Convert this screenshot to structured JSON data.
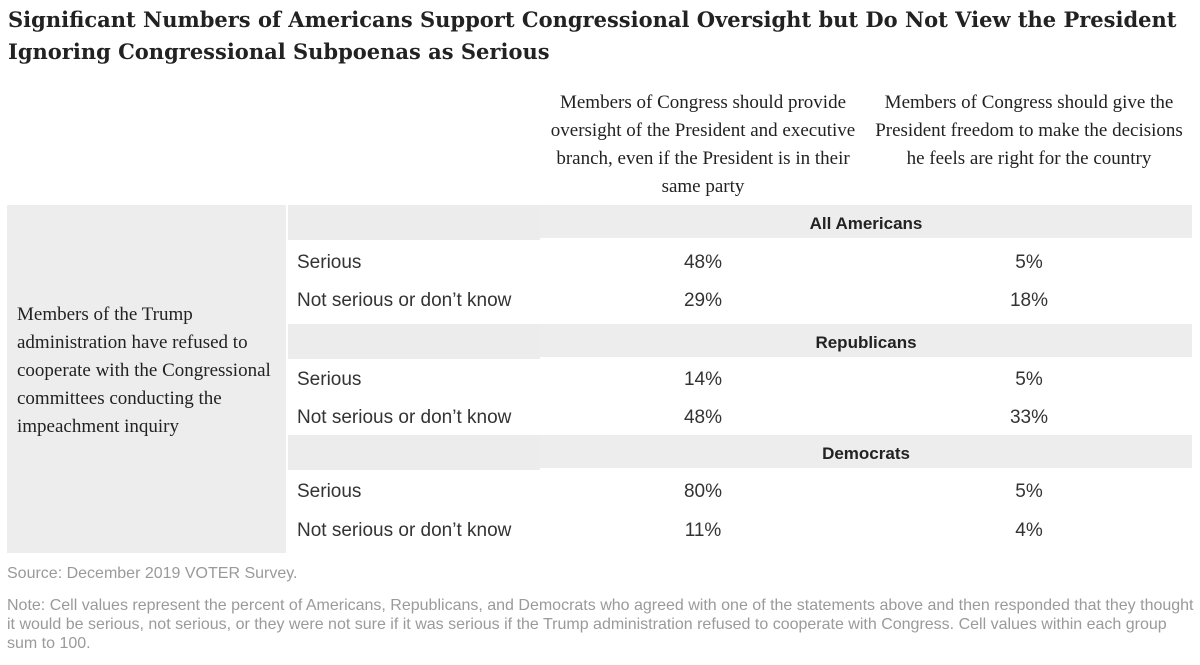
{
  "title": "Significant Numbers of Americans Support Congressional Oversight but Do Not View the President Ignoring Congressional Subpoenas as Serious",
  "chart_data": {
    "type": "table",
    "columns": [
      "Members of Congress should provide oversight of the President and executive branch, even if the President is in their same party",
      "Members of Congress should give the President freedom to make the decisions he feels are right for the country"
    ],
    "row_header": "Members of the Trump administration have refused to cooperate with the Congressional committees conducting the impeachment inquiry",
    "groups": [
      {
        "name": "All Americans",
        "rows": [
          {
            "label": "Serious",
            "values": [
              "48%",
              "5%"
            ]
          },
          {
            "label": "Not serious or don’t know",
            "values": [
              "29%",
              "18%"
            ]
          }
        ]
      },
      {
        "name": "Republicans",
        "rows": [
          {
            "label": "Serious",
            "values": [
              "14%",
              "5%"
            ]
          },
          {
            "label": "Not serious or don’t know",
            "values": [
              "48%",
              "33%"
            ]
          }
        ]
      },
      {
        "name": "Democrats",
        "rows": [
          {
            "label": "Serious",
            "values": [
              "80%",
              "5%"
            ]
          },
          {
            "label": "Not serious or don’t know",
            "values": [
              "11%",
              "4%"
            ]
          }
        ]
      }
    ]
  },
  "source": "Source: December 2019 VOTER Survey.",
  "note": "Note: Cell values represent the percent of Americans, Republicans, and Democrats who agreed with one of the statements above and then responded that they thought it would be serious, not serious, or they were not sure if it was serious if the Trump administration refused to cooperate with Congress. Cell values within each group sum to 100."
}
